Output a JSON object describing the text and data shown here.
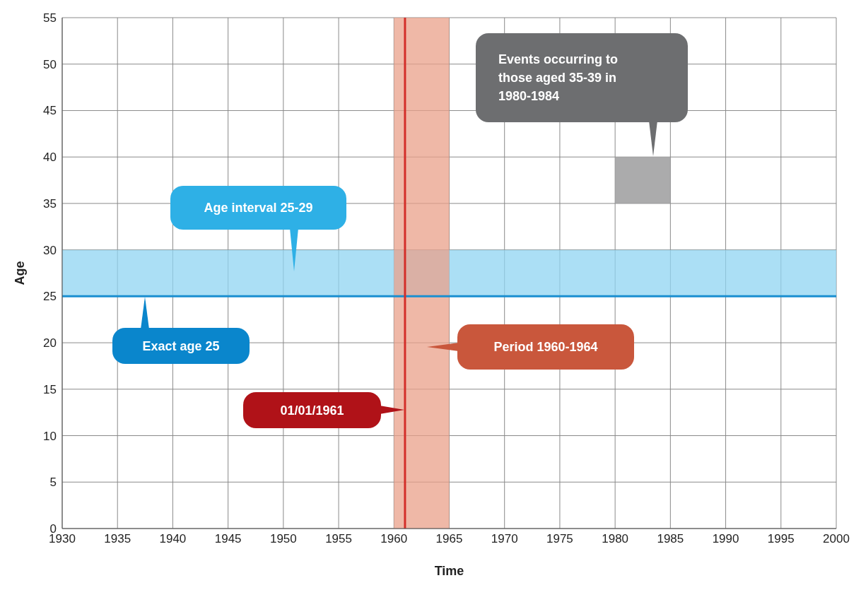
{
  "chart_data": {
    "type": "bar",
    "xlabel": "Time",
    "ylabel": "Age",
    "xlim": [
      1930,
      2000
    ],
    "xticks": [
      1930,
      1935,
      1940,
      1945,
      1950,
      1955,
      1960,
      1965,
      1970,
      1975,
      1980,
      1985,
      1990,
      1995,
      2000
    ],
    "ylim": [
      0,
      55
    ],
    "yticks": [
      0,
      5,
      10,
      15,
      20,
      25,
      30,
      35,
      40,
      45,
      50,
      55
    ],
    "grid": true,
    "bands": [
      {
        "axis": "y",
        "from": 25,
        "to": 30,
        "color": "#8fd4f2"
      },
      {
        "axis": "x",
        "from": 1960,
        "to": 1965,
        "color": "#e9a08a"
      }
    ],
    "ref_lines": [
      {
        "axis": "y",
        "value": 25,
        "color": "#1a8fd0"
      },
      {
        "axis": "x",
        "value": 1961,
        "color": "#d32f2a"
      }
    ],
    "series": [
      {
        "x": [
          1982.5
        ],
        "base": [
          35
        ],
        "values": [
          5
        ],
        "color": "#9c9c9e"
      }
    ],
    "annotations": [
      "Age interval 25-29",
      "Exact age 25",
      "Period 1960-1964",
      "01/01/1961",
      "Events occurring to those aged 35-39 in 1980-1984"
    ]
  }
}
